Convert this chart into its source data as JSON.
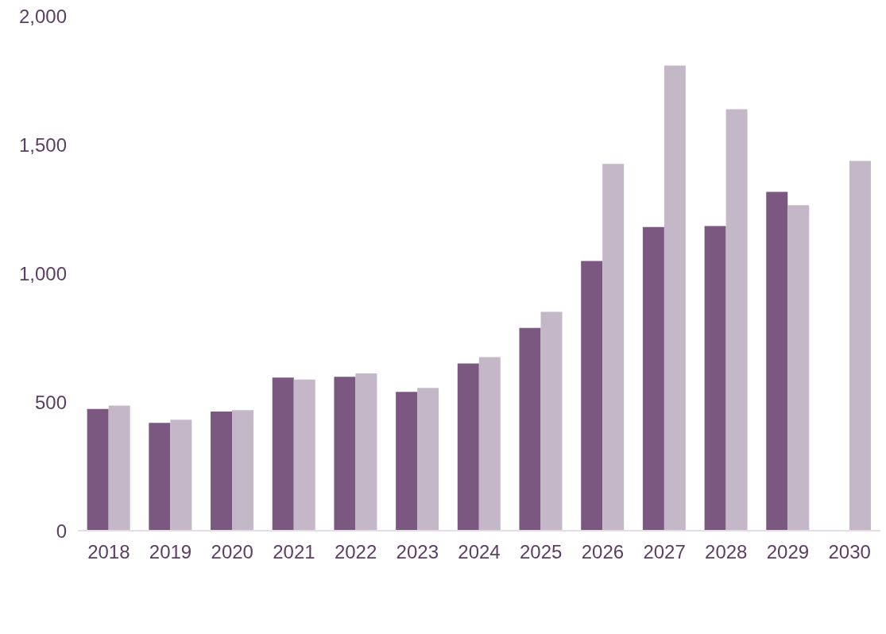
{
  "chart_data": {
    "type": "bar",
    "categories": [
      "2018",
      "2019",
      "2020",
      "2021",
      "2022",
      "2023",
      "2024",
      "2025",
      "2026",
      "2027",
      "2028",
      "2029",
      "2030"
    ],
    "series": [
      {
        "color": "#7a5880",
        "values": [
          473,
          419,
          463,
          595,
          598,
          539,
          650,
          788,
          1048,
          1180,
          1184,
          1316,
          null
        ]
      },
      {
        "color": "#c4b8c8",
        "values": [
          486,
          431,
          468,
          587,
          611,
          555,
          674,
          850,
          1425,
          1807,
          1637,
          1265,
          1437
        ]
      }
    ],
    "ylim": [
      0,
      2000
    ],
    "yticks": [
      0,
      500,
      {
        "value": 1000,
        "label": "1,000"
      },
      {
        "value": 1500,
        "label": "1,500"
      },
      {
        "value": 2000,
        "label": "2,000"
      }
    ],
    "grid": false,
    "legend": false
  }
}
